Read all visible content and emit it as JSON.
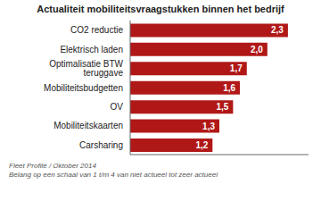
{
  "chart_data": {
    "type": "bar",
    "orientation": "horizontal",
    "title": "Actualiteit mobiliteitsvraagstukken binnen het bedrijf",
    "categories": [
      "Carsharing",
      "Mobiliteitskaarten",
      "OV",
      "Mobiliteitsbudgetten",
      "Optimalisatie BTW teruggave",
      "Elektrisch laden",
      "CO2 reductie"
    ],
    "values": [
      1.2,
      1.3,
      1.5,
      1.6,
      1.7,
      2.0,
      2.3
    ],
    "value_labels": [
      "1,2",
      "1,3",
      "1,5",
      "1,6",
      "1,7",
      "2,0",
      "2,3"
    ],
    "data_labels": true,
    "color": "#b01818",
    "xlim": [
      0,
      2.6
    ],
    "tick_labels": "y",
    "grid": false,
    "annotations": [
      "Fleet Profile / Oktober 2014",
      "Belang op een schaal van 1 t/m 4 van niet actueel tot zeer actueel"
    ]
  }
}
